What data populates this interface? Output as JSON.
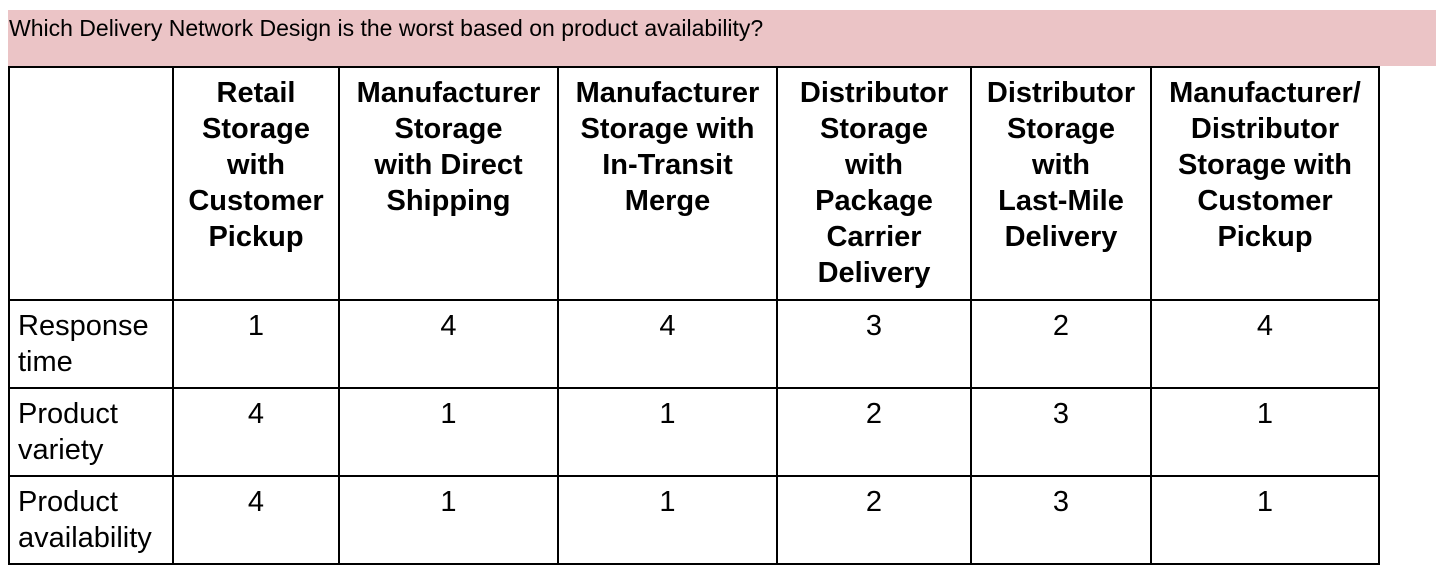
{
  "question": "Which Delivery Network Design is the worst based on product availability?",
  "table": {
    "columns": [
      {
        "lines": [
          "Retail",
          "Storage",
          "with",
          "Customer",
          "Pickup"
        ]
      },
      {
        "lines": [
          "Manufacturer",
          "Storage",
          "with Direct",
          "Shipping"
        ]
      },
      {
        "lines": [
          "Manufacturer",
          "Storage with",
          "In-Transit",
          "Merge"
        ]
      },
      {
        "lines": [
          "Distributor",
          "Storage",
          "with",
          "Package",
          "Carrier",
          "Delivery"
        ]
      },
      {
        "lines": [
          "Distributor",
          "Storage",
          "with",
          "Last-Mile",
          "Delivery"
        ]
      },
      {
        "lines": [
          "Manufacturer/",
          "Distributor",
          "Storage with",
          "Customer",
          "Pickup"
        ]
      }
    ],
    "rows": [
      {
        "label_lines": [
          "Response",
          "time"
        ],
        "values": [
          "1",
          "4",
          "4",
          "3",
          "2",
          "4"
        ]
      },
      {
        "label_lines": [
          "Product",
          "variety"
        ],
        "values": [
          "4",
          "1",
          "1",
          "2",
          "3",
          "1"
        ]
      },
      {
        "label_lines": [
          "Product",
          "availability"
        ],
        "values": [
          "4",
          "1",
          "1",
          "2",
          "3",
          "1"
        ]
      }
    ]
  }
}
